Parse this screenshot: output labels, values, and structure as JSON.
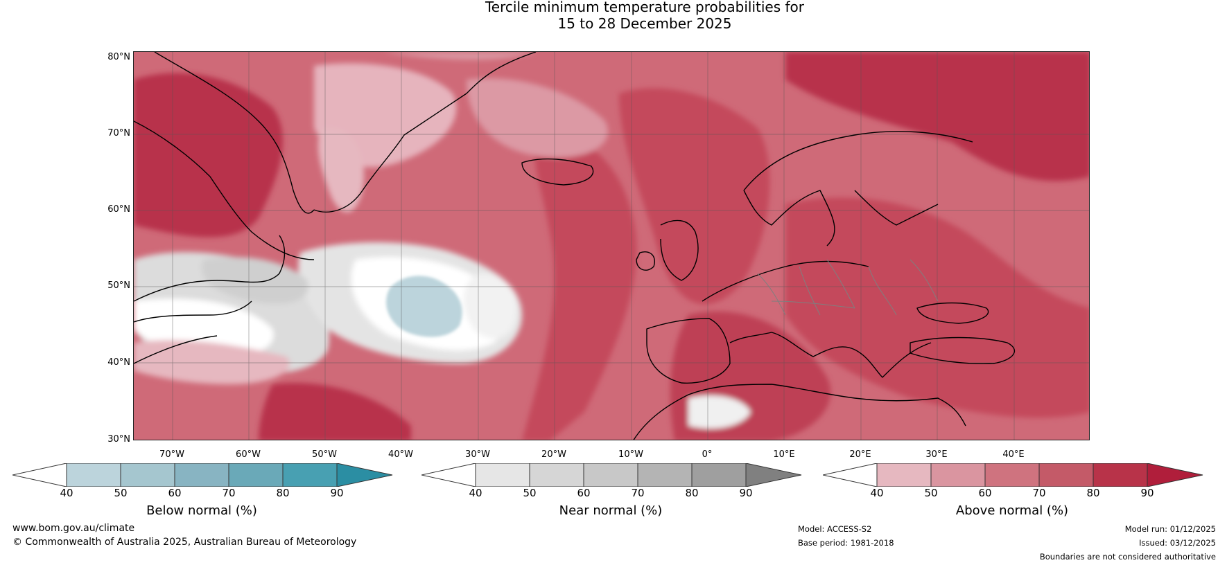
{
  "title": {
    "line1": "Tercile minimum temperature probabilities for",
    "line2": "15 to 28 December 2025"
  },
  "map": {
    "latitude_labels": [
      "80°N",
      "70°N",
      "60°N",
      "50°N",
      "40°N",
      "30°N"
    ],
    "longitude_labels": [
      "70°W",
      "60°W",
      "50°W",
      "40°W",
      "30°W",
      "20°W",
      "10°W",
      "0°",
      "10°E",
      "20°E",
      "30°E",
      "40°E"
    ],
    "region": "North Atlantic and Europe",
    "colors": {
      "ocean_base": "#d35a6c",
      "land_outline": "#000000",
      "border_color": "#808080"
    }
  },
  "colorbars": [
    {
      "label": "Below normal (%)",
      "ticks": [
        "40",
        "50",
        "60",
        "70",
        "80",
        "90"
      ],
      "colors": [
        "#ffffff",
        "#bcd4dc",
        "#a5c6cf",
        "#88b4c2",
        "#6aa9b8",
        "#48a0b2",
        "#2b8ea3"
      ]
    },
    {
      "label": "Near normal (%)",
      "ticks": [
        "40",
        "50",
        "60",
        "70",
        "80",
        "90"
      ],
      "colors": [
        "#ffffff",
        "#e6e6e6",
        "#d6d6d6",
        "#c8c8c8",
        "#b4b4b4",
        "#9f9f9f",
        "#808080"
      ]
    },
    {
      "label": "Above normal (%)",
      "ticks": [
        "40",
        "50",
        "60",
        "70",
        "80",
        "90"
      ],
      "colors": [
        "#ffffff",
        "#e6b8c0",
        "#da95a0",
        "#cf737f",
        "#c45a68",
        "#b83349",
        "#b01e3b"
      ]
    }
  ],
  "footer": {
    "website": "www.bom.gov.au/climate",
    "copyright": "© Commonwealth of Australia 2025, Australian Bureau of Meteorology",
    "model": "Model: ACCESS-S2",
    "base_period": "Base period: 1981-2018",
    "model_run": "Model run: 01/12/2025",
    "issued": "Issued: 03/12/2025",
    "disclaimer": "Boundaries are not considered authoritative"
  }
}
